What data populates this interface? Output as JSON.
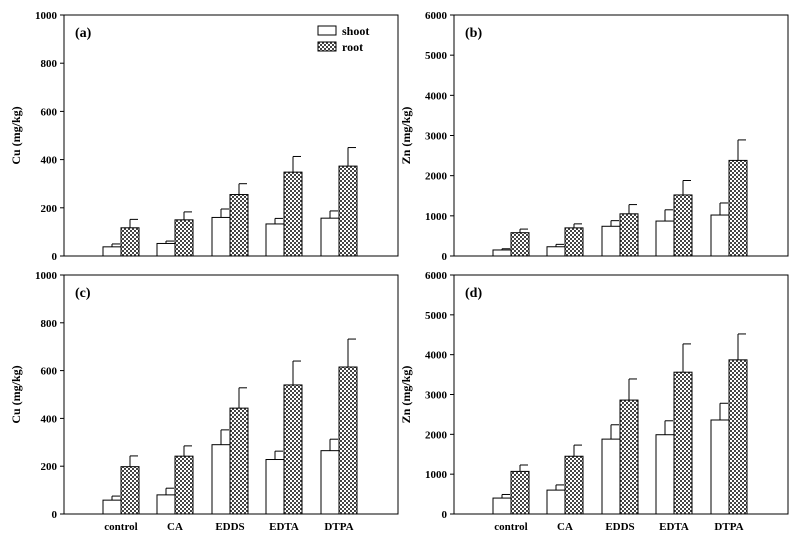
{
  "legend": {
    "shoot": "shoot",
    "root": "root"
  },
  "chart_data": [
    {
      "type": "bar",
      "panel_label": "(a)",
      "ylabel": "Cu (mg/kg)",
      "ylim": [
        0,
        1000
      ],
      "yticks": [
        0,
        200,
        400,
        600,
        800,
        1000
      ],
      "categories": [
        "control",
        "CA",
        "EDDS",
        "EDTA",
        "DTPA"
      ],
      "show_category_labels": false,
      "legend_position": "top-right",
      "series": [
        {
          "name": "shoot",
          "values": [
            38,
            52,
            160,
            133,
            157
          ],
          "errors": [
            12,
            10,
            35,
            23,
            30
          ]
        },
        {
          "name": "root",
          "values": [
            117,
            150,
            255,
            348,
            373
          ],
          "errors": [
            35,
            33,
            45,
            65,
            77
          ]
        }
      ]
    },
    {
      "type": "bar",
      "panel_label": "(b)",
      "ylabel": "Zn (mg/kg)",
      "ylim": [
        0,
        6000
      ],
      "yticks": [
        0,
        1000,
        2000,
        3000,
        4000,
        5000,
        6000
      ],
      "categories": [
        "control",
        "CA",
        "EDDS",
        "EDTA",
        "DTPA"
      ],
      "show_category_labels": false,
      "series": [
        {
          "name": "shoot",
          "values": [
            150,
            230,
            740,
            870,
            1020
          ],
          "errors": [
            30,
            60,
            140,
            280,
            300
          ]
        },
        {
          "name": "root",
          "values": [
            580,
            700,
            1050,
            1520,
            2380
          ],
          "errors": [
            90,
            100,
            230,
            360,
            510
          ]
        }
      ]
    },
    {
      "type": "bar",
      "panel_label": "(c)",
      "ylabel": "Cu (mg/kg)",
      "ylim": [
        0,
        1000
      ],
      "yticks": [
        0,
        200,
        400,
        600,
        800,
        1000
      ],
      "categories": [
        "control",
        "CA",
        "EDDS",
        "EDTA",
        "DTPA"
      ],
      "show_category_labels": true,
      "series": [
        {
          "name": "shoot",
          "values": [
            58,
            80,
            290,
            228,
            265
          ],
          "errors": [
            17,
            28,
            62,
            35,
            48
          ]
        },
        {
          "name": "root",
          "values": [
            198,
            242,
            443,
            540,
            615
          ],
          "errors": [
            45,
            43,
            85,
            100,
            117
          ]
        }
      ]
    },
    {
      "type": "bar",
      "panel_label": "(d)",
      "ylabel": "Zn (mg/kg)",
      "ylim": [
        0,
        6000
      ],
      "yticks": [
        0,
        1000,
        2000,
        3000,
        4000,
        5000,
        6000
      ],
      "categories": [
        "control",
        "CA",
        "EDDS",
        "EDTA",
        "DTPA"
      ],
      "show_category_labels": true,
      "series": [
        {
          "name": "shoot",
          "values": [
            400,
            600,
            1880,
            1990,
            2360
          ],
          "errors": [
            90,
            130,
            360,
            350,
            420
          ]
        },
        {
          "name": "root",
          "values": [
            1070,
            1450,
            2860,
            3560,
            3870
          ],
          "errors": [
            160,
            280,
            530,
            710,
            650
          ]
        }
      ]
    }
  ]
}
